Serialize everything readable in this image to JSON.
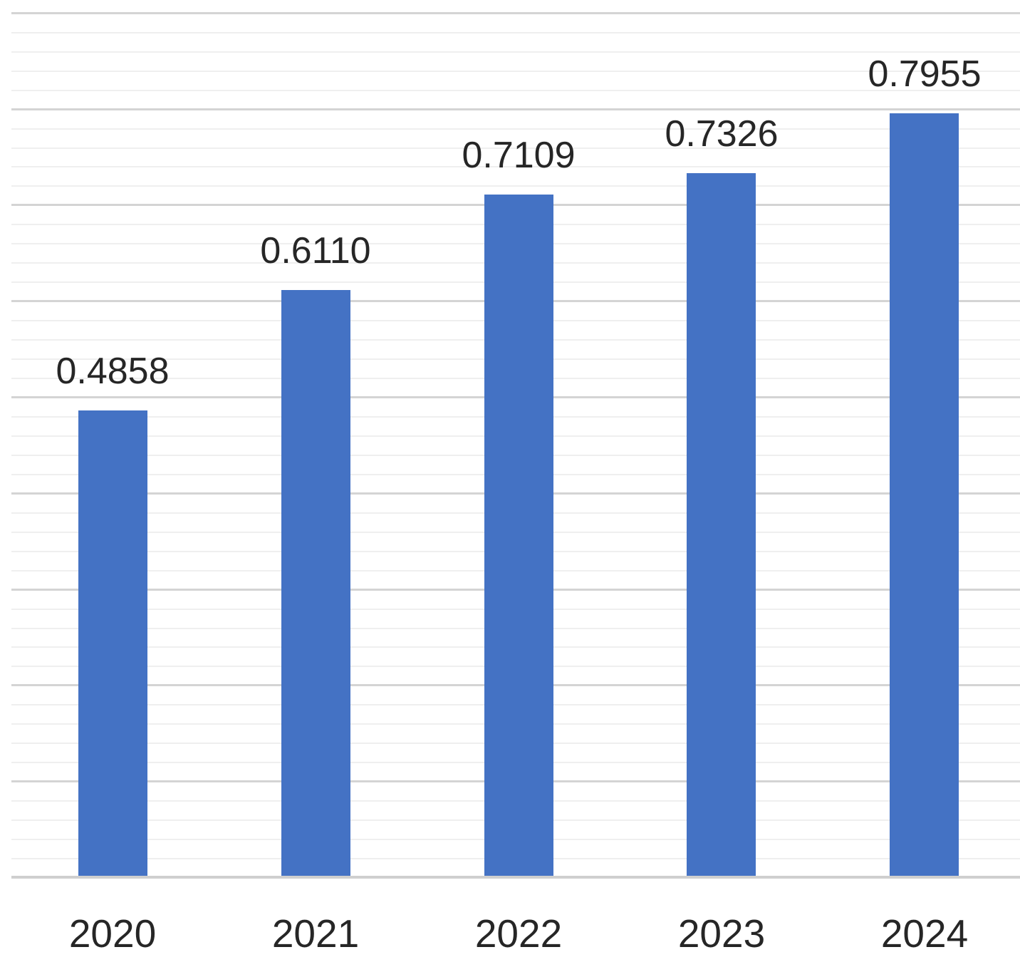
{
  "chart_data": {
    "type": "bar",
    "categories": [
      "2020",
      "2021",
      "2022",
      "2023",
      "2024"
    ],
    "values": [
      0.4858,
      0.611,
      0.7109,
      0.7326,
      0.7955
    ],
    "value_labels": [
      "0.4858",
      "0.6110",
      "0.7109",
      "0.7326",
      "0.7955"
    ],
    "series_count": 1,
    "title": "",
    "xlabel": "",
    "ylabel": "",
    "ylim": [
      0,
      0.9
    ],
    "grid": {
      "visible": true,
      "minor_step": 0.02,
      "major_step": 0.1
    },
    "legend": "none",
    "data_labels_position": "outside-end",
    "colors": {
      "bar": "#4472C4",
      "text": "#262626",
      "major_gridline": "#D4D4D4",
      "minor_gridline": "#EFEFEF",
      "axis_line": "#CFCFCF",
      "background": "#FFFFFF"
    }
  }
}
